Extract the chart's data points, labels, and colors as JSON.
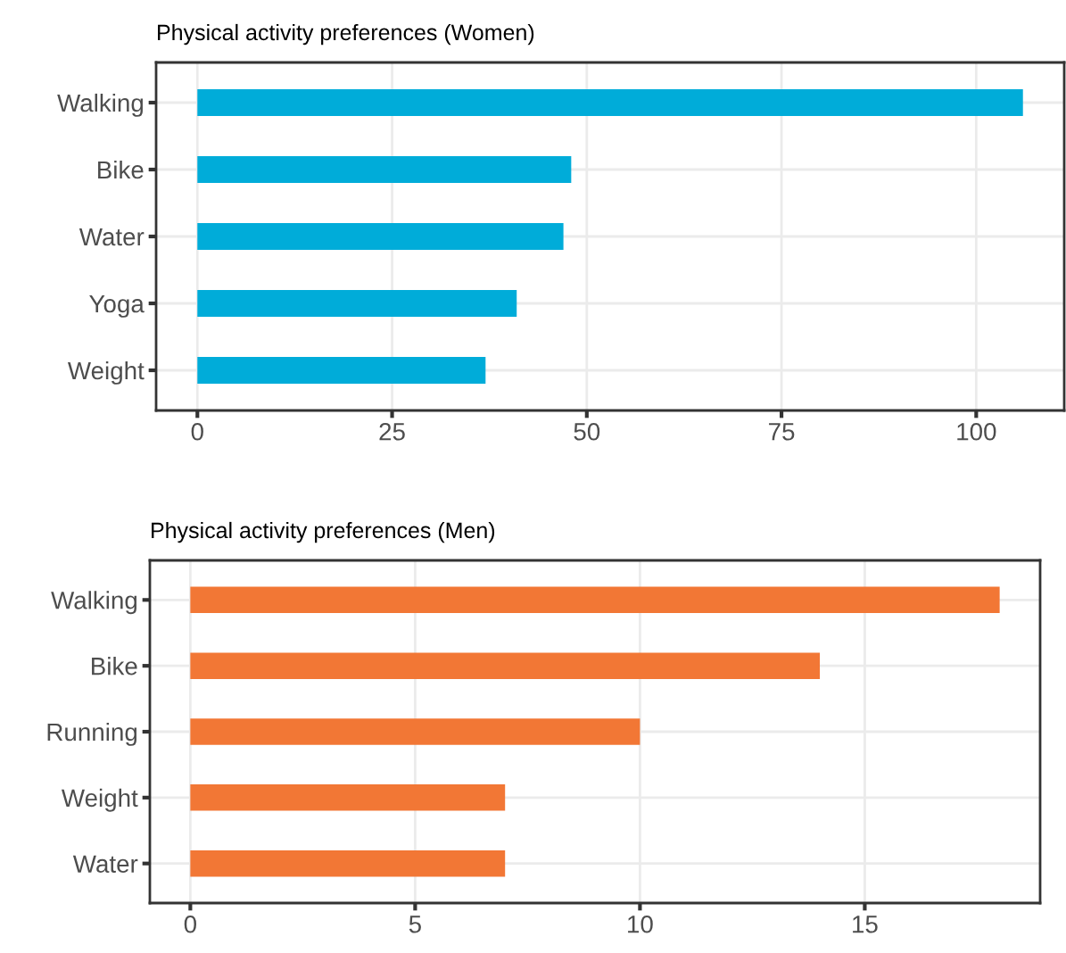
{
  "chart_data": [
    {
      "type": "bar",
      "orientation": "horizontal",
      "title": "Physical activity preferences (Women)",
      "categories": [
        "Walking",
        "Bike",
        "Water",
        "Yoga",
        "Weight"
      ],
      "values": [
        106,
        48,
        47,
        41,
        37
      ],
      "color": "#00acd9",
      "xlim": [
        -5.3,
        111.3
      ],
      "xticks": [
        0,
        25,
        50,
        75,
        100
      ],
      "grid": true
    },
    {
      "type": "bar",
      "orientation": "horizontal",
      "title": "Physical activity preferences (Men)",
      "categories": [
        "Walking",
        "Bike",
        "Running",
        "Weight",
        "Water"
      ],
      "values": [
        18,
        14,
        10,
        7,
        7
      ],
      "color": "#f27735",
      "xlim": [
        -0.9,
        18.9
      ],
      "xticks": [
        0,
        5,
        10,
        15
      ],
      "grid": true
    }
  ]
}
